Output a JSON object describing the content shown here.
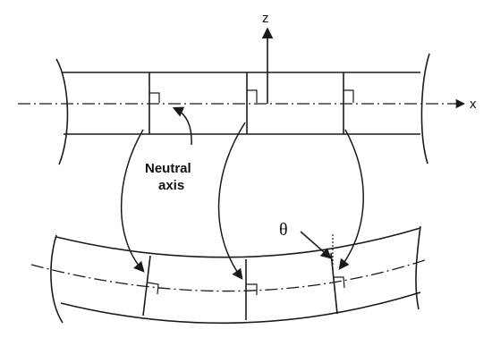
{
  "labels": {
    "z_axis": "z",
    "x_axis": "x",
    "neutral_line1": "Neutral",
    "neutral_line2": "axis",
    "theta": "θ"
  }
}
